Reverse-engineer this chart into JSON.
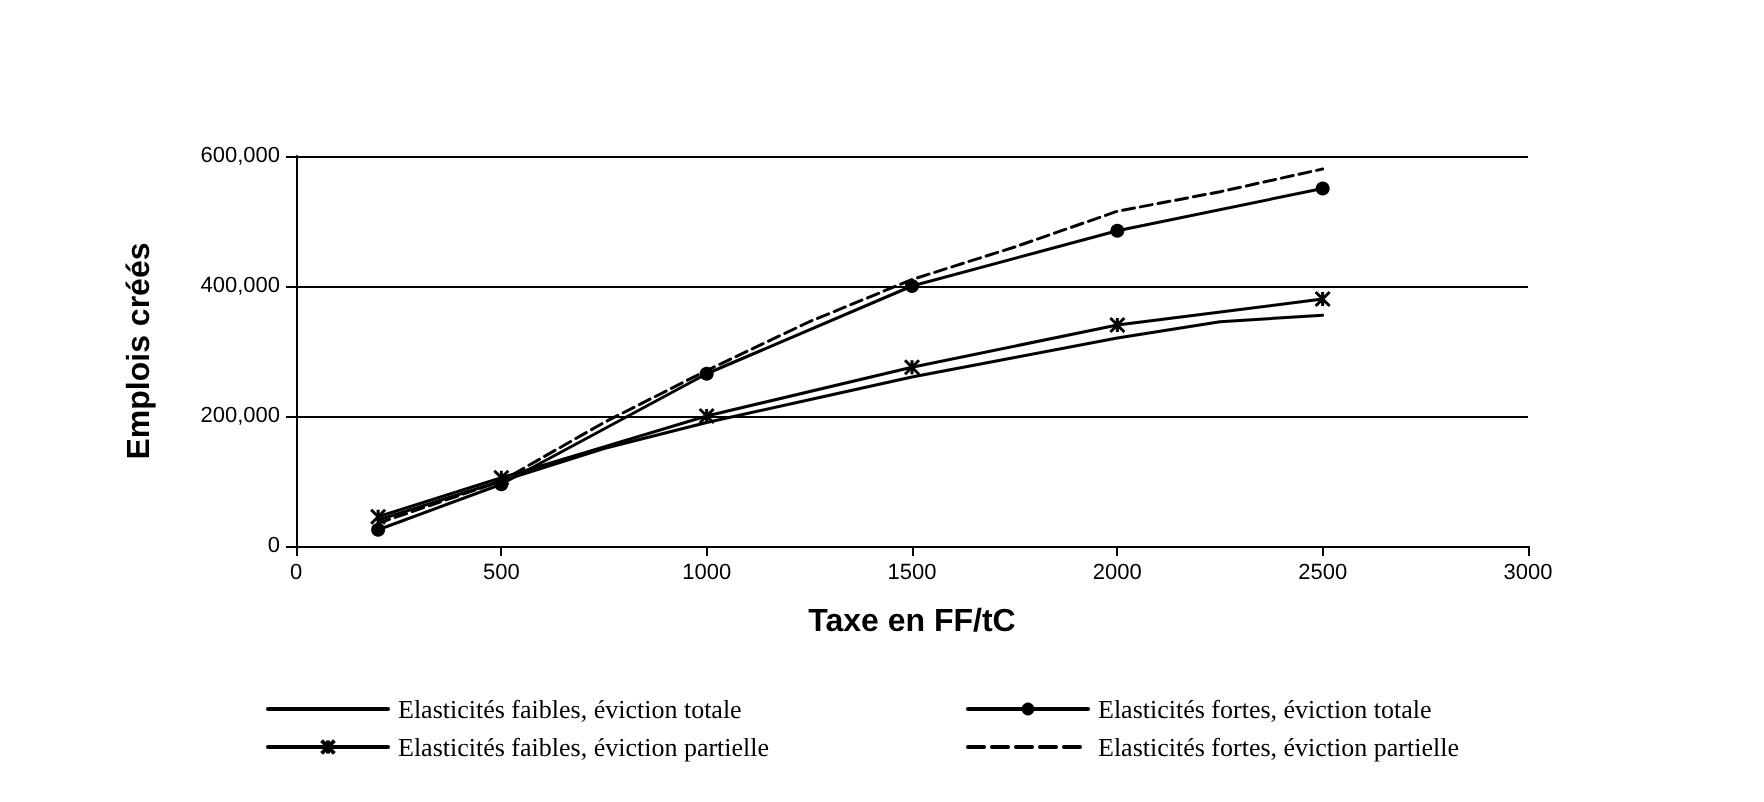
{
  "chart_data": {
    "type": "line",
    "xlabel": "Taxe en FF/tC",
    "ylabel": "Emplois créés",
    "xlim": [
      0,
      3000
    ],
    "xticks": [
      0,
      500,
      1000,
      1500,
      2000,
      2500,
      3000
    ],
    "ylim": [
      0,
      600000
    ],
    "yticks": [
      {
        "value": 0,
        "label": "0"
      },
      {
        "value": 200000,
        "label": "200,000"
      },
      {
        "value": 400000,
        "label": "400,000"
      },
      {
        "value": 600000,
        "label": "600,000"
      }
    ],
    "grid": "y",
    "legend": "bottom",
    "series": [
      {
        "name": "Elasticités faibles, éviction totale",
        "color": "#000000",
        "marker": "none",
        "line_style": "solid",
        "x": [
          200,
          500,
          750,
          1000,
          1250,
          1500,
          1750,
          2000,
          2250,
          2500
        ],
        "values": [
          40000,
          100000,
          150000,
          190000,
          225000,
          260000,
          290000,
          320000,
          345000,
          355000
        ]
      },
      {
        "name": "Elasticités fortes, éviction totale",
        "color": "#000000",
        "marker": "circle",
        "line_style": "solid",
        "x": [
          200,
          500,
          1000,
          1500,
          2000,
          2500
        ],
        "values": [
          25000,
          95000,
          265000,
          400000,
          485000,
          550000
        ]
      },
      {
        "name": "Elasticités faibles, éviction partielle",
        "color": "#000000",
        "marker": "cross",
        "line_style": "solid",
        "x": [
          200,
          500,
          1000,
          1500,
          2000,
          2500
        ],
        "values": [
          45000,
          105000,
          200000,
          275000,
          340000,
          380000
        ]
      },
      {
        "name": "Elasticités fortes, éviction partielle",
        "color": "#000000",
        "marker": "none",
        "line_style": "dashed",
        "x": [
          200,
          500,
          750,
          1000,
          1250,
          1500,
          1750,
          2000,
          2250,
          2500
        ],
        "values": [
          35000,
          100000,
          190000,
          270000,
          345000,
          410000,
          460000,
          515000,
          545000,
          580000
        ]
      }
    ]
  }
}
